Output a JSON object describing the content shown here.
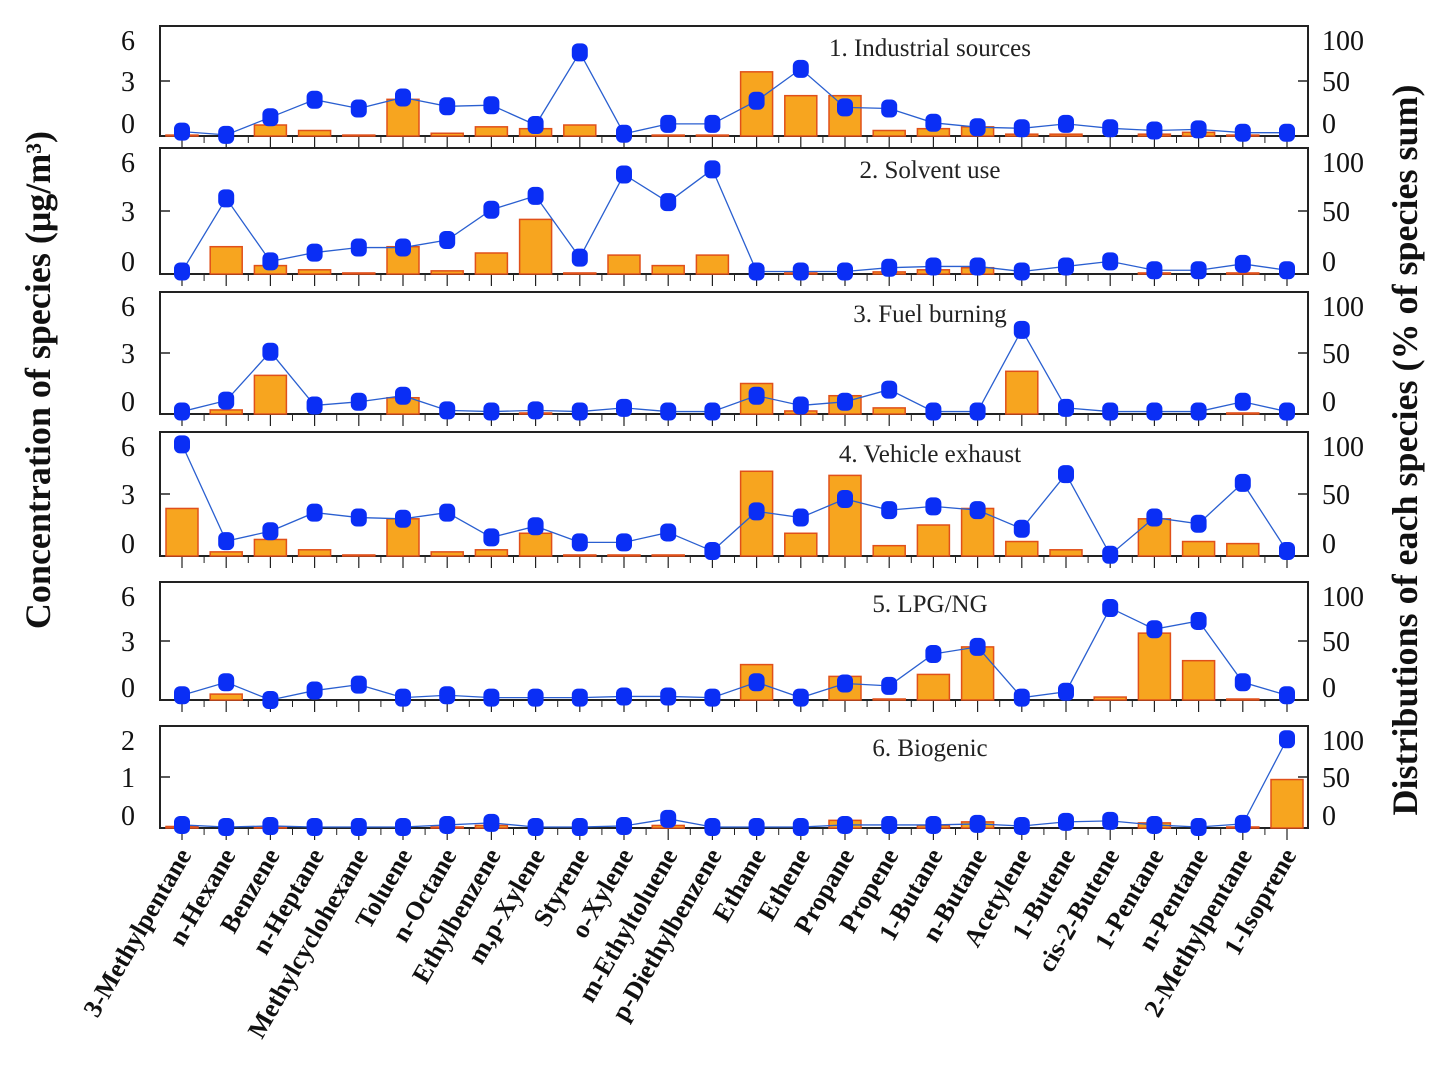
{
  "chart_data": {
    "type": "bar+line",
    "ylabel_left": "Concentration of species (μg/m³)",
    "ylabel_right": "Distributions of each species (% of species sum)",
    "categories": [
      "3-Methylpentane",
      "n-Hexane",
      "Benzene",
      "n-Heptane",
      "Methylcyclohexane",
      "Toluene",
      "n-Octane",
      "Ethylbenzene",
      "m,p-Xylene",
      "Styrene",
      "o-Xylene",
      "m-Ethyltoluene",
      "p-Diethylbenzene",
      "Ethane",
      "Ethene",
      "Propane",
      "Propene",
      "1-Butane",
      "n-Butane",
      "Acetylene",
      "1-Butene",
      "cis-2-Butene",
      "1-Pentane",
      "n-Pentane",
      "2-Methylpentane",
      "1-Isoprene"
    ],
    "right_ylim": [
      0,
      100
    ],
    "right_ticks": [
      "0",
      "50",
      "100"
    ],
    "panels": [
      {
        "title": "1. Industrial sources",
        "ylim": [
          0,
          6
        ],
        "left_ticks": [
          "0",
          "3",
          "6"
        ],
        "concentration": [
          0.05,
          0,
          0.6,
          0.3,
          0.05,
          2.0,
          0.15,
          0.5,
          0.4,
          0.6,
          0,
          0.05,
          0.05,
          3.5,
          2.2,
          2.2,
          0.3,
          0.4,
          0.5,
          0.1,
          0.1,
          0,
          0.1,
          0.2,
          0.05,
          0
        ],
        "percent": [
          4,
          1,
          17,
          33,
          25,
          35,
          27,
          28,
          10,
          76,
          2,
          11,
          11,
          32,
          61,
          26,
          25,
          12,
          8,
          7,
          11,
          7,
          5,
          6,
          3,
          3
        ]
      },
      {
        "title": "2. Solvent use",
        "ylim": [
          0,
          6
        ],
        "left_ticks": [
          "0",
          "3",
          "6"
        ],
        "concentration": [
          0,
          1.3,
          0.4,
          0.2,
          0.05,
          1.3,
          0.15,
          1.0,
          2.6,
          0.05,
          0.9,
          0.4,
          0.9,
          0,
          0.05,
          0,
          0.1,
          0.2,
          0.3,
          0,
          0,
          0,
          0.05,
          0,
          0.05,
          0
        ],
        "percent": [
          2,
          60,
          10,
          17,
          21,
          21,
          27,
          51,
          62,
          13,
          79,
          57,
          83,
          2,
          2,
          2,
          5,
          6,
          6,
          2,
          6,
          10,
          3,
          3,
          8,
          3
        ]
      },
      {
        "title": "3. Fuel burning",
        "ylim": [
          0,
          6
        ],
        "left_ticks": [
          "0",
          "3",
          "6"
        ],
        "concentration": [
          0,
          0.2,
          1.9,
          0,
          0,
          0.8,
          0,
          0,
          0.05,
          0,
          0,
          0,
          0,
          1.5,
          0.15,
          0.9,
          0.3,
          0,
          0,
          2.1,
          0,
          0,
          0,
          0,
          0.05,
          0
        ],
        "percent": [
          2,
          11,
          51,
          7,
          10,
          15,
          3,
          2,
          3,
          2,
          5,
          2,
          2,
          15,
          7,
          10,
          20,
          2,
          2,
          69,
          5,
          2,
          2,
          2,
          10,
          2
        ]
      },
      {
        "title": "4. Vehicle exhaust",
        "ylim": [
          0,
          6
        ],
        "left_ticks": [
          "0",
          "3",
          "6"
        ],
        "concentration": [
          2.3,
          0.2,
          0.8,
          0.3,
          0.05,
          1.8,
          0.2,
          0.3,
          1.1,
          0.05,
          0.05,
          0.05,
          0,
          4.1,
          1.1,
          3.9,
          0.5,
          1.5,
          2.3,
          0.7,
          0.3,
          0,
          1.8,
          0.7,
          0.6,
          0
        ],
        "percent": [
          90,
          12,
          20,
          35,
          31,
          30,
          35,
          15,
          24,
          11,
          11,
          19,
          4,
          36,
          31,
          46,
          37,
          40,
          37,
          22,
          66,
          1,
          31,
          26,
          59,
          4
        ]
      },
      {
        "title": "5. LPG/NG",
        "ylim": [
          0,
          6
        ],
        "left_ticks": [
          "0",
          "3",
          "6"
        ],
        "concentration": [
          0,
          0.3,
          0,
          0,
          0,
          0,
          0,
          0,
          0,
          0,
          0,
          0,
          0,
          1.8,
          0,
          1.2,
          0.05,
          1.3,
          2.7,
          0,
          0,
          0.15,
          3.4,
          2.0,
          0.05,
          0
        ],
        "percent": [
          4,
          15,
          0,
          8,
          13,
          2,
          4,
          2,
          2,
          2,
          3,
          3,
          2,
          15,
          2,
          14,
          12,
          39,
          45,
          2,
          7,
          78,
          60,
          67,
          15,
          4
        ]
      },
      {
        "title": "6. Biogenic",
        "ylim": [
          0,
          2
        ],
        "left_ticks": [
          "0",
          "1",
          "2"
        ],
        "concentration": [
          0.03,
          0,
          0.02,
          0,
          0,
          0,
          0.02,
          0.05,
          0,
          0,
          0,
          0.05,
          0,
          0,
          0,
          0.15,
          0,
          0.05,
          0.12,
          0,
          0,
          0,
          0.1,
          0,
          0.02,
          0.95
        ],
        "percent": [
          3,
          1,
          2,
          1,
          1,
          1,
          3,
          5,
          1,
          1,
          2,
          9,
          1,
          1,
          1,
          3,
          3,
          3,
          4,
          2,
          6,
          7,
          3,
          1,
          4,
          87
        ]
      }
    ],
    "colors": {
      "bar": "#f7a51f",
      "bar_edge": "#e0501a",
      "marker": "#0a2ef5",
      "line": "#2a5fd0"
    }
  }
}
